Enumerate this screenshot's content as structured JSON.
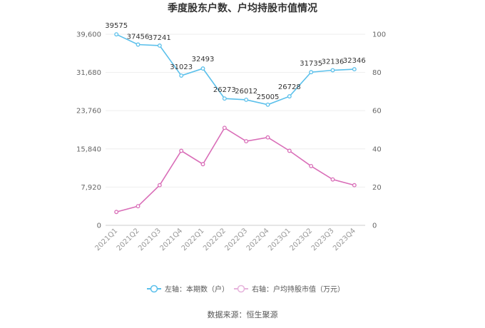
{
  "title": "季度股东户数、户均持股市值情况",
  "source": "数据来源：恒生聚源",
  "chart_data": {
    "type": "line",
    "categories": [
      "2021Q1",
      "2021Q2",
      "2021Q3",
      "2021Q4",
      "2022Q1",
      "2022Q2",
      "2022Q3",
      "2022Q4",
      "2023Q1",
      "2023Q2",
      "2023Q3",
      "2023Q4"
    ],
    "left_axis": {
      "ylim": [
        0,
        39600
      ],
      "ticks": [
        0,
        7920,
        15840,
        23760,
        31680,
        39600
      ],
      "tick_labels": [
        "0",
        "7,920",
        "15,840",
        "23,760",
        "31,680",
        "39,600"
      ]
    },
    "right_axis": {
      "ylim": [
        0,
        100
      ],
      "ticks": [
        0,
        20,
        40,
        60,
        80,
        100
      ],
      "tick_labels": [
        "0",
        "20",
        "40",
        "60",
        "80",
        "100"
      ]
    },
    "series": [
      {
        "name": "左轴：本期数（户）",
        "axis": "left",
        "color": "#5bc0eb",
        "values": [
          39575,
          37456,
          37241,
          31023,
          32493,
          26273,
          26012,
          25005,
          26728,
          31735,
          32136,
          32346
        ],
        "labels": [
          "39575",
          "37456",
          "37241",
          "31023",
          "32493",
          "26273",
          "26012",
          "25005",
          "26728",
          "31735",
          "32136",
          "32346"
        ]
      },
      {
        "name": "右轴：户均持股市值（万元）",
        "axis": "right",
        "color": "#d96eb8",
        "values": [
          7,
          10,
          21,
          39,
          32,
          51,
          44,
          46,
          39,
          31,
          24,
          21
        ]
      }
    ],
    "grid": true,
    "legend_position": "bottom"
  }
}
